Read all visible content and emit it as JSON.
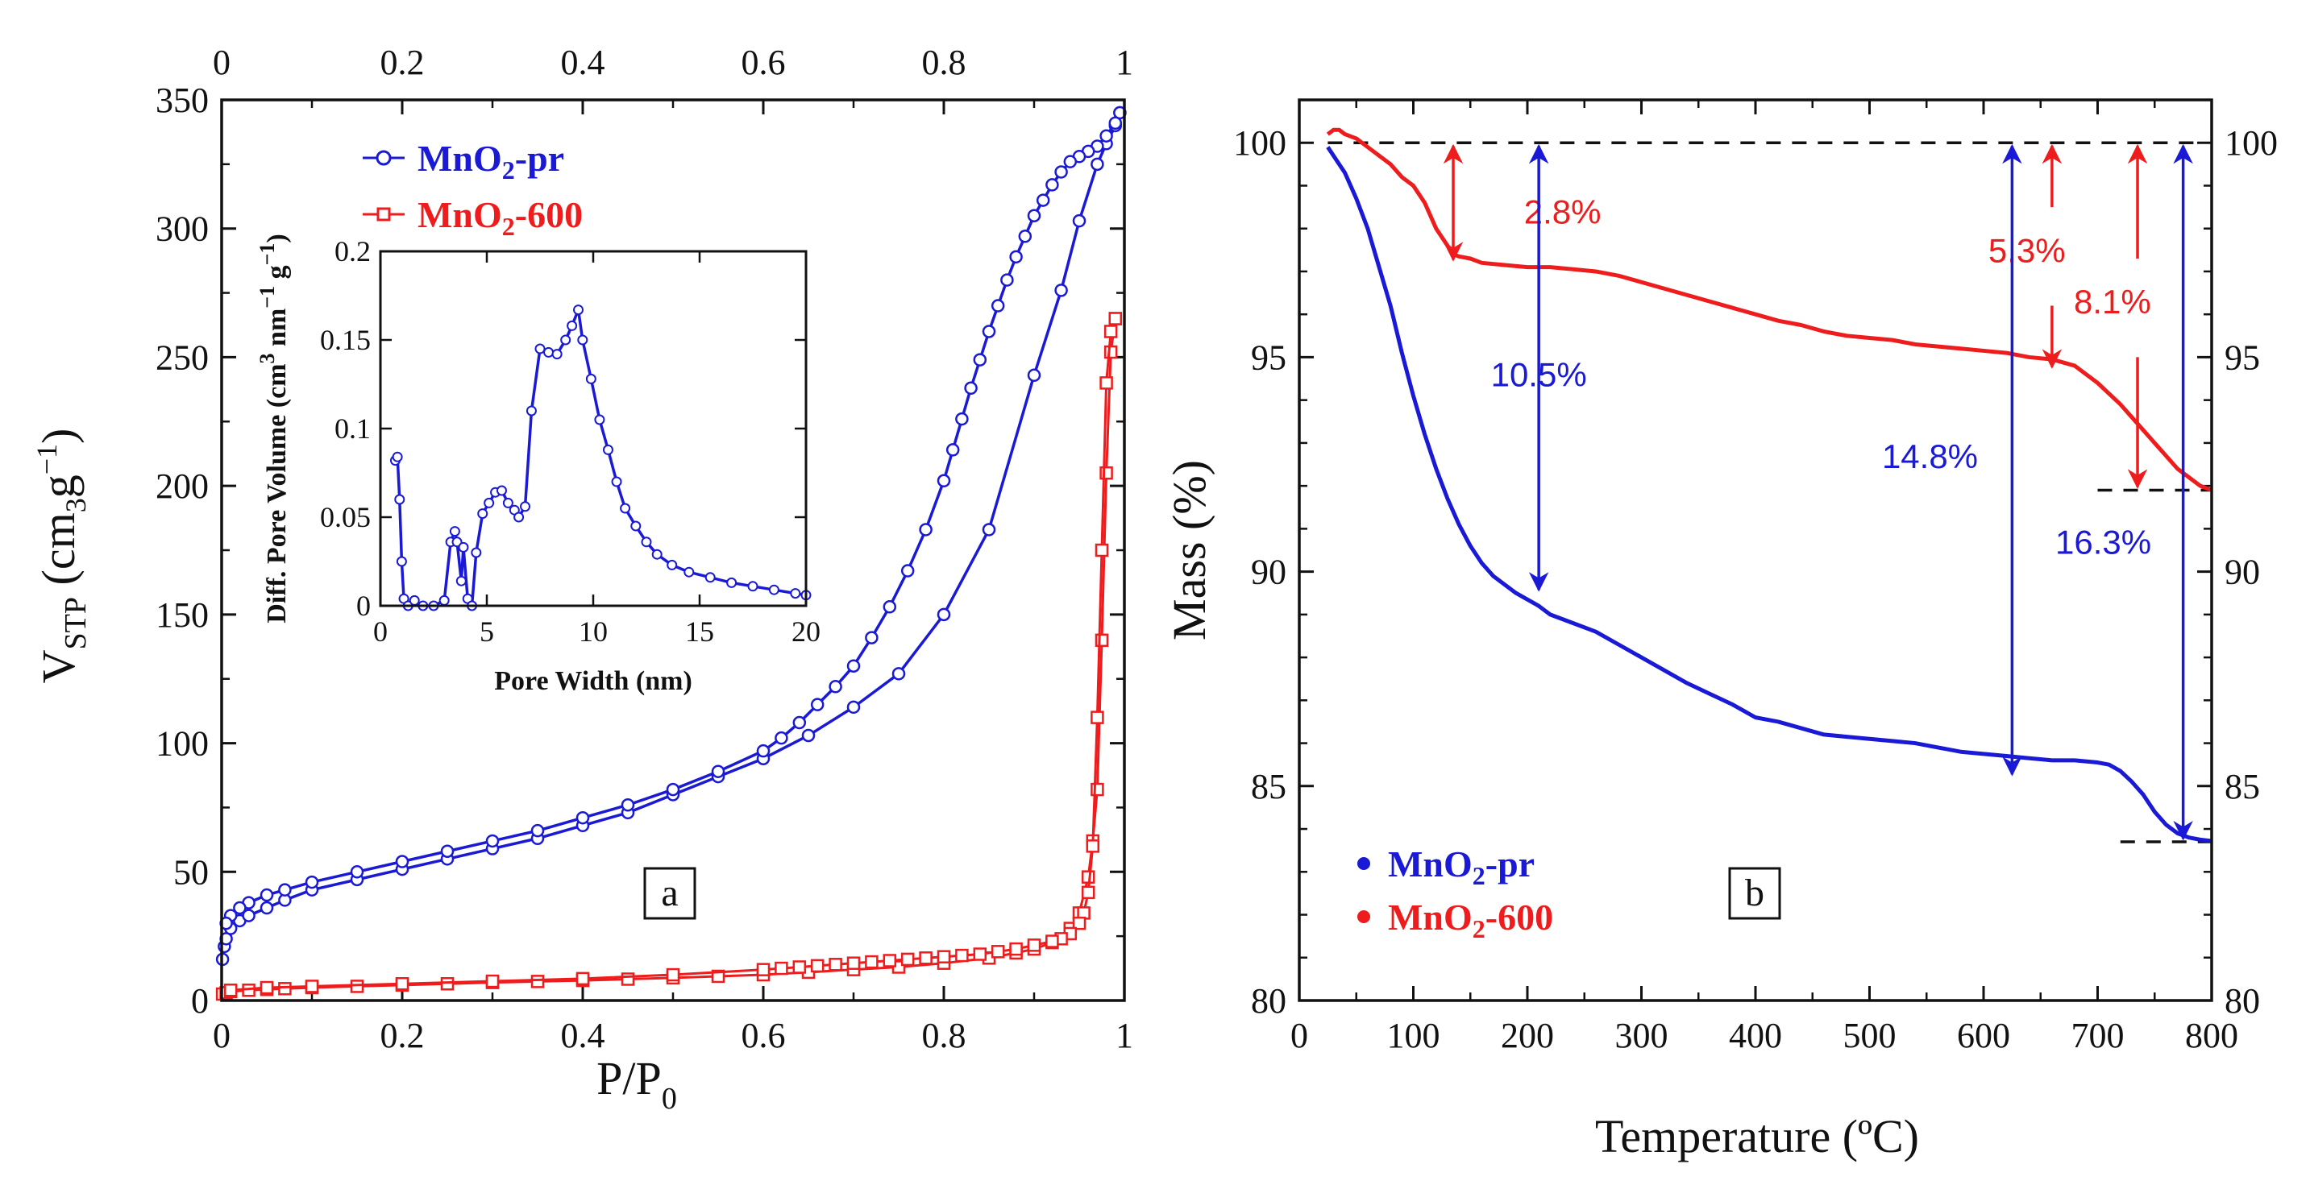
{
  "colors": {
    "pr": "#1a1ad6",
    "c600": "#ee1c1c",
    "axis": "#111111"
  },
  "legend": {
    "pr": {
      "prefix": "MnO",
      "sub": "2",
      "suffix": "-pr"
    },
    "c600": {
      "prefix": "MnO",
      "sub": "2",
      "suffix": "-600"
    }
  },
  "chart_data": [
    {
      "type": "line",
      "panel": "a",
      "xlabel": {
        "base": "P/P",
        "sub": "0"
      },
      "ylabel": {
        "base": "V",
        "sub": "STP",
        "unit_pre": "(cm",
        "unit_exp": "3",
        "unit_mid": "g",
        "unit_exp2": "−1",
        "unit_post": ")"
      },
      "xlim": [
        0,
        1
      ],
      "ylim": [
        0,
        350
      ],
      "x_ticks": [
        "0",
        "0.2",
        "0.4",
        "0.6",
        "0.8",
        "1"
      ],
      "x_top_ticks": [
        "0",
        "0.2",
        "0.4",
        "0.6",
        "0.8",
        "1"
      ],
      "y_ticks": [
        "0",
        "50",
        "100",
        "150",
        "200",
        "250",
        "300",
        "350"
      ],
      "series": [
        {
          "name": "MnO2-pr adsorption",
          "marker": "circle",
          "x": [
            0.001,
            0.003,
            0.005,
            0.01,
            0.02,
            0.03,
            0.05,
            0.07,
            0.1,
            0.15,
            0.2,
            0.25,
            0.3,
            0.35,
            0.4,
            0.45,
            0.5,
            0.55,
            0.6,
            0.65,
            0.7,
            0.75,
            0.8,
            0.85,
            0.9,
            0.93,
            0.95,
            0.97,
            0.98,
            0.99,
            0.995
          ],
          "y": [
            16,
            21,
            24,
            28,
            31,
            33,
            36,
            39,
            43,
            47,
            51,
            55,
            59,
            63,
            68,
            73,
            80,
            87,
            94,
            103,
            114,
            127,
            150,
            183,
            243,
            276,
            303,
            325,
            333,
            340,
            345
          ]
        },
        {
          "name": "MnO2-pr desorption",
          "marker": "circle",
          "x": [
            0.995,
            0.99,
            0.98,
            0.97,
            0.96,
            0.95,
            0.94,
            0.93,
            0.92,
            0.91,
            0.9,
            0.89,
            0.88,
            0.87,
            0.86,
            0.85,
            0.84,
            0.83,
            0.82,
            0.81,
            0.8,
            0.78,
            0.76,
            0.74,
            0.72,
            0.7,
            0.68,
            0.66,
            0.64,
            0.62,
            0.6,
            0.55,
            0.5,
            0.45,
            0.4,
            0.35,
            0.3,
            0.25,
            0.2,
            0.15,
            0.1,
            0.07,
            0.05,
            0.03,
            0.02,
            0.01,
            0.005
          ],
          "y": [
            345,
            341,
            336,
            332,
            330,
            328,
            326,
            322,
            317,
            311,
            305,
            297,
            289,
            280,
            270,
            260,
            249,
            238,
            226,
            214,
            202,
            183,
            167,
            153,
            141,
            130,
            122,
            115,
            108,
            102,
            97,
            89,
            82,
            76,
            71,
            66,
            62,
            58,
            54,
            50,
            46,
            43,
            41,
            38,
            36,
            33,
            30
          ]
        },
        {
          "name": "MnO2-600 adsorption",
          "marker": "square",
          "x": [
            0.001,
            0.005,
            0.01,
            0.03,
            0.05,
            0.07,
            0.1,
            0.15,
            0.2,
            0.25,
            0.3,
            0.35,
            0.4,
            0.45,
            0.5,
            0.55,
            0.6,
            0.65,
            0.7,
            0.75,
            0.8,
            0.85,
            0.88,
            0.9,
            0.92,
            0.94,
            0.95,
            0.96,
            0.965,
            0.97,
            0.975,
            0.98,
            0.985,
            0.99
          ],
          "y": [
            2.5,
            3,
            3.5,
            4,
            4.3,
            4.6,
            5,
            5.5,
            6,
            6.5,
            7,
            7.4,
            7.8,
            8.3,
            8.8,
            9.4,
            10,
            11,
            12,
            13,
            14.5,
            16.5,
            18.5,
            20,
            22.5,
            28,
            34,
            48,
            62,
            82,
            140,
            205,
            252,
            265
          ]
        },
        {
          "name": "MnO2-600 desorption",
          "marker": "square",
          "x": [
            0.99,
            0.985,
            0.98,
            0.975,
            0.97,
            0.965,
            0.96,
            0.955,
            0.95,
            0.94,
            0.93,
            0.92,
            0.9,
            0.88,
            0.86,
            0.84,
            0.82,
            0.8,
            0.78,
            0.76,
            0.74,
            0.72,
            0.7,
            0.68,
            0.66,
            0.64,
            0.62,
            0.6,
            0.5,
            0.4,
            0.3,
            0.2,
            0.1,
            0.05,
            0.01
          ],
          "y": [
            265,
            260,
            240,
            175,
            110,
            60,
            42,
            34,
            30,
            26,
            24,
            23,
            21.5,
            20,
            19,
            18,
            17.5,
            17,
            16.5,
            16,
            15.5,
            15,
            14.5,
            14,
            13.5,
            13,
            12.5,
            12,
            10,
            8.5,
            7.5,
            6.5,
            5.5,
            5,
            4
          ]
        }
      ],
      "inset": {
        "type": "line",
        "xlabel": "Pore Width (nm)",
        "ylabel": {
          "pre": "Diff. Pore Volume (cm",
          "exp": "3",
          "mid": "nm",
          "exp2": "−1",
          "mid2": "g",
          "exp3": "−1",
          "post": ")"
        },
        "xlim": [
          0,
          20
        ],
        "ylim": [
          0,
          0.2
        ],
        "x_ticks": [
          "0",
          "5",
          "10",
          "15",
          "20"
        ],
        "y_ticks": [
          "0",
          "0.05",
          "0.1",
          "0.15",
          "0.2"
        ],
        "series": [
          {
            "name": "MnO2-pr PSD",
            "x": [
              0.7,
              0.8,
              0.9,
              1.0,
              1.1,
              1.3,
              1.6,
              2.0,
              2.5,
              3.0,
              3.3,
              3.5,
              3.6,
              3.8,
              3.9,
              4.1,
              4.3,
              4.5,
              4.8,
              5.1,
              5.4,
              5.7,
              6.0,
              6.3,
              6.5,
              6.8,
              7.1,
              7.5,
              7.9,
              8.3,
              8.7,
              9.0,
              9.3,
              9.5,
              9.9,
              10.3,
              10.7,
              11.1,
              11.5,
              12.0,
              12.5,
              13.0,
              13.7,
              14.5,
              15.5,
              16.5,
              17.5,
              18.5,
              19.5,
              20.0
            ],
            "y": [
              0.082,
              0.084,
              0.06,
              0.025,
              0.004,
              0.0,
              0.003,
              0.0,
              0.0,
              0.003,
              0.036,
              0.042,
              0.036,
              0.014,
              0.033,
              0.004,
              0.0,
              0.03,
              0.052,
              0.058,
              0.064,
              0.065,
              0.058,
              0.054,
              0.05,
              0.056,
              0.11,
              0.145,
              0.143,
              0.142,
              0.15,
              0.158,
              0.167,
              0.15,
              0.128,
              0.105,
              0.088,
              0.07,
              0.055,
              0.045,
              0.036,
              0.029,
              0.023,
              0.019,
              0.016,
              0.013,
              0.011,
              0.009,
              0.007,
              0.006
            ]
          }
        ]
      },
      "panel_label": "a"
    },
    {
      "type": "line",
      "panel": "b",
      "xlabel": "Temperature (ºC)",
      "ylabel": "Mass (%)",
      "xlim": [
        0,
        800
      ],
      "ylim": [
        80,
        101
      ],
      "x_ticks": [
        "0",
        "100",
        "200",
        "300",
        "400",
        "500",
        "600",
        "700",
        "800"
      ],
      "y_ticks": [
        "80",
        "85",
        "90",
        "95",
        "100"
      ],
      "y_right_ticks": [
        "80",
        "85",
        "90",
        "95",
        "100"
      ],
      "series": [
        {
          "name": "MnO2-pr",
          "x": [
            25,
            30,
            40,
            50,
            60,
            70,
            80,
            90,
            100,
            110,
            120,
            130,
            140,
            150,
            160,
            170,
            180,
            190,
            200,
            210,
            220,
            240,
            260,
            280,
            300,
            320,
            340,
            360,
            380,
            400,
            420,
            440,
            460,
            480,
            500,
            520,
            540,
            560,
            580,
            600,
            620,
            640,
            660,
            680,
            700,
            710,
            720,
            730,
            740,
            750,
            760,
            770,
            780,
            790,
            800
          ],
          "y": [
            99.9,
            99.7,
            99.3,
            98.7,
            98.0,
            97.1,
            96.2,
            95.1,
            94.1,
            93.2,
            92.4,
            91.7,
            91.1,
            90.6,
            90.2,
            89.9,
            89.7,
            89.5,
            89.35,
            89.2,
            89.0,
            88.8,
            88.6,
            88.3,
            88.0,
            87.7,
            87.4,
            87.15,
            86.9,
            86.6,
            86.5,
            86.35,
            86.2,
            86.15,
            86.1,
            86.05,
            86.0,
            85.9,
            85.8,
            85.75,
            85.7,
            85.65,
            85.6,
            85.6,
            85.55,
            85.5,
            85.35,
            85.1,
            84.8,
            84.4,
            84.1,
            83.9,
            83.8,
            83.75,
            83.72
          ]
        },
        {
          "name": "MnO2-600",
          "x": [
            25,
            30,
            35,
            40,
            50,
            60,
            70,
            80,
            90,
            100,
            110,
            120,
            130,
            135,
            140,
            150,
            160,
            180,
            200,
            220,
            240,
            260,
            280,
            300,
            320,
            340,
            360,
            380,
            400,
            420,
            440,
            460,
            480,
            500,
            520,
            540,
            560,
            580,
            600,
            620,
            640,
            660,
            680,
            690,
            700,
            710,
            720,
            730,
            740,
            750,
            760,
            770,
            780,
            790,
            800
          ],
          "y": [
            100.2,
            100.3,
            100.3,
            100.2,
            100.1,
            99.9,
            99.7,
            99.5,
            99.2,
            99.0,
            98.6,
            98.0,
            97.6,
            97.4,
            97.35,
            97.3,
            97.2,
            97.15,
            97.1,
            97.1,
            97.05,
            97.0,
            96.9,
            96.75,
            96.6,
            96.45,
            96.3,
            96.15,
            96.0,
            95.85,
            95.75,
            95.6,
            95.5,
            95.45,
            95.4,
            95.3,
            95.25,
            95.2,
            95.15,
            95.1,
            95.0,
            94.95,
            94.8,
            94.6,
            94.4,
            94.15,
            93.9,
            93.6,
            93.3,
            93.0,
            92.7,
            92.4,
            92.2,
            92.0,
            91.9
          ]
        }
      ],
      "reference_lines": {
        "y100": 100,
        "y600_end": 91.9,
        "ypr_end": 83.7
      },
      "annotations": [
        {
          "text": "2.8%",
          "series": "MnO2-600",
          "x": 135,
          "y_top": 100,
          "y_bot": 97.2
        },
        {
          "text": "5.3%",
          "series": "MnO2-600",
          "x": 660,
          "y_top": 100,
          "y_bot": 94.7
        },
        {
          "text": "8.1%",
          "series": "MnO2-600",
          "x": 735,
          "y_top": 100,
          "y_bot": 91.9
        },
        {
          "text": "10.5%",
          "series": "MnO2-pr",
          "x": 210,
          "y_top": 100,
          "y_bot": 89.5
        },
        {
          "text": "14.8%",
          "series": "MnO2-pr",
          "x": 625,
          "y_top": 100,
          "y_bot": 85.2
        },
        {
          "text": "16.3%",
          "series": "MnO2-pr",
          "x": 775,
          "y_top": 100,
          "y_bot": 83.7
        }
      ],
      "panel_label": "b"
    }
  ]
}
